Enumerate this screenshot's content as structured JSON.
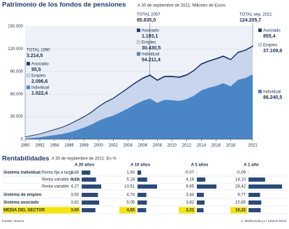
{
  "chart_data": {
    "type": "stacked-area",
    "title": "Patrimonio de los fondos de pensiones",
    "subtitle": "A 30 de septiembre de 2021. Millones de Euros",
    "x": [
      1990,
      1991,
      1992,
      1993,
      1994,
      1995,
      1996,
      1997,
      1998,
      1999,
      2000,
      2001,
      2002,
      2003,
      2004,
      2005,
      2006,
      2007,
      2008,
      2009,
      2010,
      2011,
      2012,
      2013,
      2014,
      2015,
      2016,
      2017,
      2018,
      2019,
      2020,
      2021
    ],
    "xlim": [
      1990,
      2021
    ],
    "xticks": [
      1990,
      1992,
      1994,
      1996,
      1998,
      2000,
      2002,
      2004,
      2006,
      2008,
      2010,
      2012,
      2014,
      2016,
      2018,
      2021
    ],
    "ylim": [
      0,
      150000
    ],
    "yticks": [
      0,
      {
        "value": 30000,
        "label": "30.000"
      },
      {
        "value": 60000,
        "label": "60.000"
      },
      {
        "value": 90000,
        "label": "90.000"
      },
      {
        "value": 120000,
        "label": "120.000"
      },
      {
        "value": 150000,
        "label": "150.000"
      }
    ],
    "grid": true,
    "series": [
      {
        "name": "Individual",
        "color": "#4a86c5",
        "values": [
          1022.4,
          1800,
          2700,
          4000,
          5500,
          7000,
          9200,
          12000,
          15500,
          19500,
          24500,
          28500,
          31500,
          36000,
          41000,
          46500,
          51000,
          54211.4,
          48500,
          52500,
          52000,
          51000,
          53500,
          58000,
          65000,
          68500,
          71000,
          74500,
          70500,
          79000,
          81500,
          86240.5
        ],
        "value_labels": {
          "0": "1.022,4",
          "17": "54.211,4",
          "31": "86.240,5"
        }
      },
      {
        "name": "Empleo",
        "color": "#c8d5ec",
        "values": [
          2096.6,
          3100,
          4200,
          5700,
          7200,
          8600,
          10400,
          12500,
          14000,
          16000,
          18500,
          20800,
          22500,
          24800,
          26500,
          28000,
          29500,
          30430.5,
          29500,
          30500,
          31000,
          31000,
          31500,
          33000,
          34500,
          35000,
          35500,
          35500,
          35000,
          36000,
          36500,
          37109.8
        ],
        "value_labels": {
          "0": "2.096,6",
          "17": "30.430,5",
          "31": "37.109,8"
        }
      },
      {
        "name": "Asociado",
        "color": "#1f3a6b",
        "values": [
          95.5,
          120,
          150,
          200,
          250,
          300,
          350,
          400,
          450,
          500,
          550,
          600,
          650,
          700,
          800,
          900,
          1000,
          1193.1,
          1000,
          1000,
          950,
          950,
          950,
          950,
          950,
          950,
          900,
          900,
          850,
          880,
          860,
          855.4
        ],
        "value_labels": {
          "0": "95,5",
          "17": "1.193,1",
          "31": "855,4"
        }
      }
    ],
    "callouts": [
      {
        "title": "TOTAL 1990",
        "total": {
          "value": 3214.5,
          "label": "3.214,5"
        }
      },
      {
        "title": "TOTAL 2007",
        "total": {
          "value": 85835,
          "label": "85.835,0"
        }
      },
      {
        "title": "TOTAL sep. 2021",
        "total": {
          "value": 124205.7,
          "label": "124.205,7"
        }
      }
    ]
  },
  "table": {
    "title": "Rentabilidades",
    "subtitle": "A 30 de septiembre de 2021. En %",
    "columns": [
      "A 20 años",
      "A 10 años",
      "A 5 años",
      "A 1 año"
    ],
    "bar_color": "#2b4a7e",
    "highlight_color": "#f5e500",
    "rows": [
      {
        "group": "Sistema individual:",
        "label": "Renta fija a largo",
        "values": [
          1.88,
          1.93,
          -0.07,
          -0.09
        ],
        "value_labels": [
          "1,88",
          "1,93",
          "-0,07",
          "-0,09"
        ]
      },
      {
        "label": "Renta variable mixta",
        "values": [
          3.13,
          5.18,
          4.18,
          14.1
        ],
        "value_labels": [
          "3,13",
          "5,18",
          "4,18",
          "14,10"
        ]
      },
      {
        "label": "Renta variable",
        "values": [
          4.27,
          10.51,
          9.65,
          28.42
        ],
        "value_labels": [
          "4,27",
          "10,51",
          "9,65",
          "28,42"
        ]
      },
      {
        "group": "Sistema de empleo",
        "values": [
          3.55,
          4.74,
          3.44,
          9.77
        ],
        "value_labels": [
          "3,55",
          "4,74",
          "3,44",
          "9,77"
        ]
      },
      {
        "group": "Sistema asociado",
        "values": [
          3.82,
          5.05,
          3.82,
          10.85
        ],
        "value_labels": [
          "3,82",
          "5,05",
          "3,82",
          "10,85"
        ]
      },
      {
        "group": "MEDIA DEL SECTOR",
        "highlight": true,
        "values": [
          3.0,
          4.65,
          3.31,
          10.32
        ],
        "value_labels": [
          "3,00",
          "4,65",
          "3,31",
          "10,32"
        ]
      }
    ],
    "source": "Fuente: Inverco",
    "credit": "A. MORAGUILLA / CINCO DÍAS"
  }
}
